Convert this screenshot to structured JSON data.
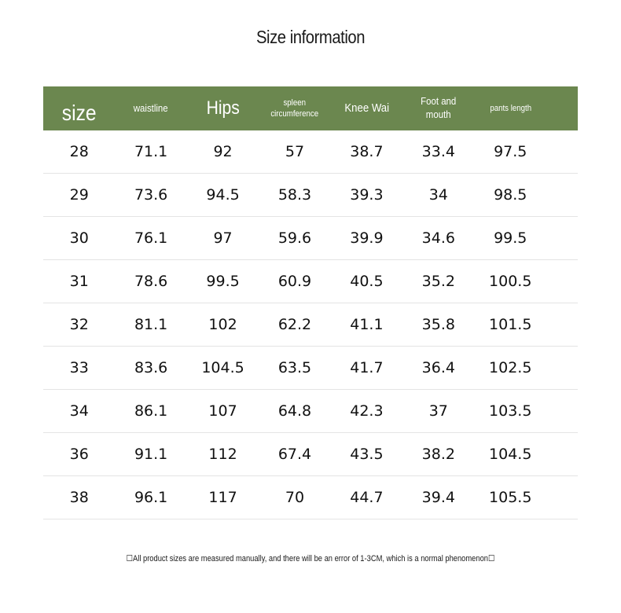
{
  "title": "Size information",
  "headers": [
    "size",
    "waistline",
    "Hips",
    "spleen circumference",
    "Knee Wai",
    "Foot and mouth",
    "pants length"
  ],
  "header_lines": [
    [
      "size"
    ],
    [
      "waistline"
    ],
    [
      "Hips"
    ],
    [
      "spleen",
      "circumference"
    ],
    [
      "Knee Wai"
    ],
    [
      "Foot and",
      "mouth"
    ],
    [
      "pants length"
    ]
  ],
  "rows": [
    [
      "28",
      "71.1",
      "92",
      "57",
      "38.7",
      "33.4",
      "97.5"
    ],
    [
      "29",
      "73.6",
      "94.5",
      "58.3",
      "39.3",
      "34",
      "98.5"
    ],
    [
      "30",
      "76.1",
      "97",
      "59.6",
      "39.9",
      "34.6",
      "99.5"
    ],
    [
      "31",
      "78.6",
      "99.5",
      "60.9",
      "40.5",
      "35.2",
      "100.5"
    ],
    [
      "32",
      "81.1",
      "102",
      "62.2",
      "41.1",
      "35.8",
      "101.5"
    ],
    [
      "33",
      "83.6",
      "104.5",
      "63.5",
      "41.7",
      "36.4",
      "102.5"
    ],
    [
      "34",
      "86.1",
      "107",
      "64.8",
      "42.3",
      "37",
      "103.5"
    ],
    [
      "36",
      "91.1",
      "112",
      "67.4",
      "43.5",
      "38.2",
      "104.5"
    ],
    [
      "38",
      "96.1",
      "117",
      "70",
      "44.7",
      "39.4",
      "105.5"
    ]
  ],
  "note": "☐All product sizes are measured manually, and there will be an error of 1-3CM, which is a normal phenomenon☐",
  "colors": {
    "header_bg": "#6b874f",
    "header_text": "#ffffff",
    "row_divider": "#e4e4e4"
  }
}
